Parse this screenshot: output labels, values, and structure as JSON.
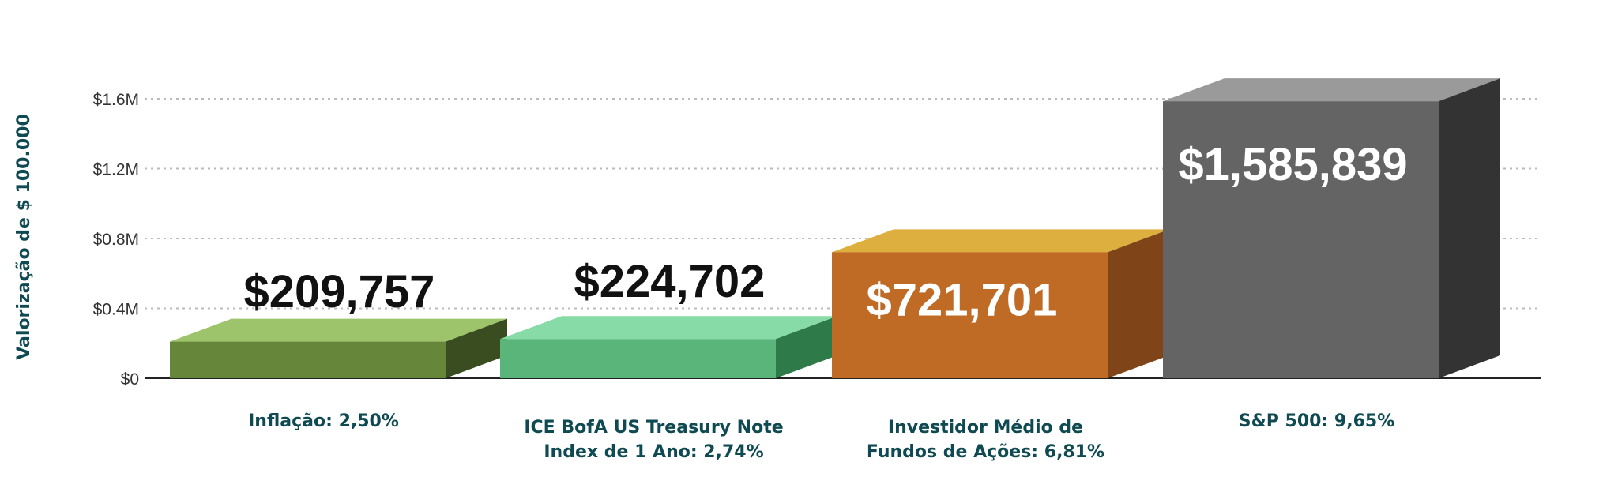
{
  "chart_data": {
    "type": "bar",
    "style": "3d",
    "ylabel": "Valorização de $ 100.000",
    "ylim": [
      0,
      1600000
    ],
    "yticks": [
      0,
      400000,
      800000,
      1200000,
      1600000
    ],
    "ytick_labels": [
      "$0",
      "$0.4M",
      "$0.8M",
      "$1.2M",
      "$1.6M"
    ],
    "grid": true,
    "categories": [
      [
        "Inflação: 2,50%"
      ],
      [
        "ICE BofA US Treasury Note",
        "Index de 1 Ano: 2,74%"
      ],
      [
        "Investidor Médio de",
        "Fundos de Ações: 6,81%"
      ],
      [
        "S&P 500: 9,65%"
      ]
    ],
    "values": [
      209757,
      224702,
      721701,
      1585839
    ],
    "value_labels": [
      "$209,757",
      "$224,702",
      "$721,701",
      "$1,585,839"
    ],
    "colors": [
      {
        "front": "#66863a",
        "top": "#9dc46a",
        "side": "#3a4d20"
      },
      {
        "front": "#5ab57b",
        "top": "#86dba6",
        "side": "#2e7a48"
      },
      {
        "front": "#bf6b26",
        "top": "#ddaf3e",
        "side": "#7f4418"
      },
      {
        "front": "#646464",
        "top": "#9a9a9a",
        "side": "#333333"
      }
    ]
  }
}
